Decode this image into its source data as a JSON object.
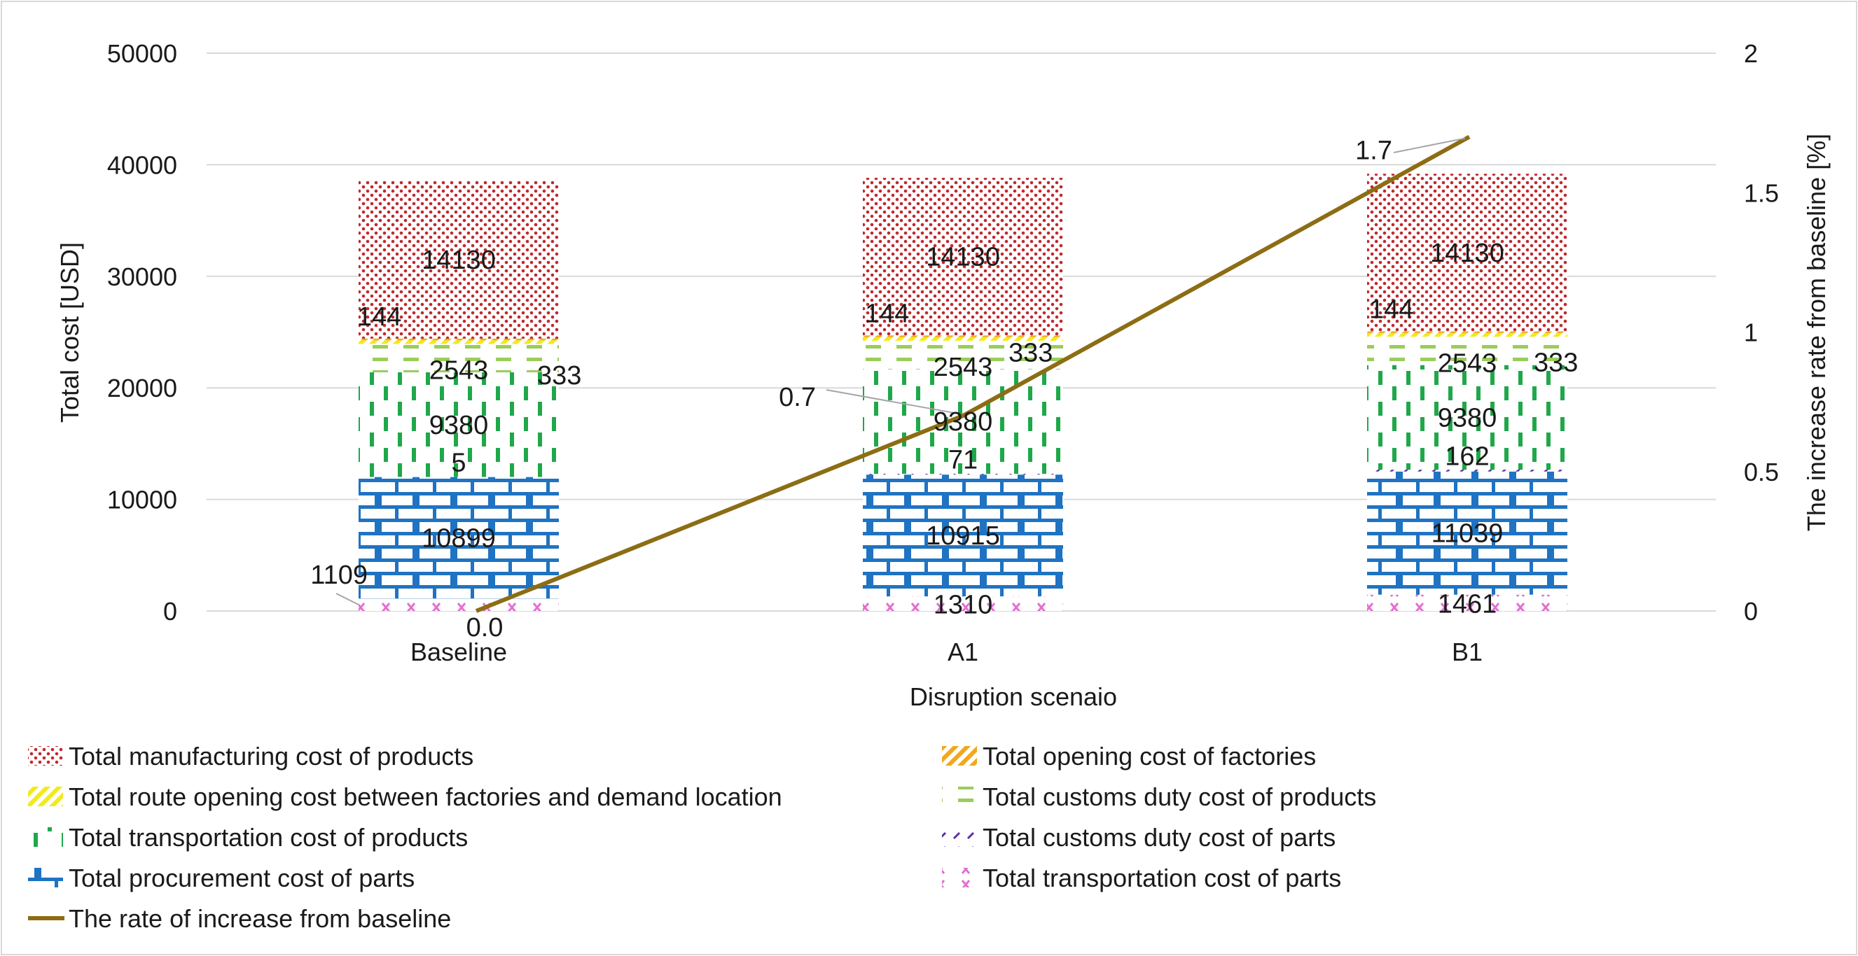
{
  "chart_data": {
    "type": "bar",
    "stacked": true,
    "xlabel": "Disruption scenaio",
    "ylabel": "Total cost [USD]",
    "y2label": "The increase rate from baseline [%]",
    "ylim": [
      0,
      50000
    ],
    "y2lim": [
      0,
      2
    ],
    "yticks": [
      "0",
      "10000",
      "20000",
      "30000",
      "40000",
      "50000"
    ],
    "y2ticks": [
      "0",
      "0.5",
      "1",
      "1.5",
      "2"
    ],
    "categories": [
      "Baseline",
      "A1",
      "B1"
    ],
    "series": [
      {
        "name": "Total transportation cost of parts",
        "values": [
          1109,
          1310,
          1461
        ],
        "labels": [
          "1109",
          "1310",
          "1461"
        ],
        "color": "#e36fd3",
        "pattern": "cross"
      },
      {
        "name": "Total procurement cost of parts",
        "values": [
          10899,
          10915,
          11039
        ],
        "labels": [
          "10899",
          "10915",
          "11039"
        ],
        "color": "#1f73c2",
        "pattern": "brick"
      },
      {
        "name": "Total customs duty cost of parts",
        "values": [
          5,
          71,
          162
        ],
        "labels": [
          "5",
          "71",
          "162"
        ],
        "color": "#5b2ea6",
        "pattern": "dash-diag"
      },
      {
        "name": "Total transportation cost of products",
        "values": [
          9380,
          9380,
          9380
        ],
        "labels": [
          "9380",
          "9380",
          "9380"
        ],
        "color": "#1fa84a",
        "pattern": "vdash"
      },
      {
        "name": "Total customs duty cost of products",
        "values": [
          2543,
          2543,
          2543
        ],
        "labels": [
          "2543",
          "2543",
          "2543"
        ],
        "color": "#9acd5a",
        "pattern": "hdash"
      },
      {
        "name": "Total route opening cost between factories and demand location",
        "values": [
          333,
          333,
          333
        ],
        "labels": [
          "333",
          "333",
          "333"
        ],
        "color": "#f2ea1c",
        "pattern": "diag"
      },
      {
        "name": "Total opening cost of factories",
        "values": [
          144,
          144,
          144
        ],
        "labels": [
          "144",
          "144",
          "144"
        ],
        "color": "#f2a81c",
        "pattern": "diag"
      },
      {
        "name": "Total manufacturing cost of products",
        "values": [
          14130,
          14130,
          14130
        ],
        "labels": [
          "14130",
          "14130",
          "14130"
        ],
        "color": "#c0282d",
        "pattern": "dots"
      }
    ],
    "line": {
      "name": "The rate of increase from baseline",
      "values": [
        0.0,
        0.7,
        1.7
      ],
      "labels": [
        "0.0",
        "0.7",
        "1.7"
      ],
      "color": "#8c6d14",
      "axis": "secondary"
    },
    "legend_order": [
      "Total manufacturing cost of products",
      "Total opening cost of factories",
      "Total route opening cost between factories and demand location",
      "Total customs duty cost of products",
      "Total transportation cost of products",
      "Total customs duty cost of parts",
      "Total procurement cost of parts",
      "Total transportation cost of parts",
      "The rate of increase from baseline"
    ],
    "legend_position": "bottom",
    "grid": true
  }
}
